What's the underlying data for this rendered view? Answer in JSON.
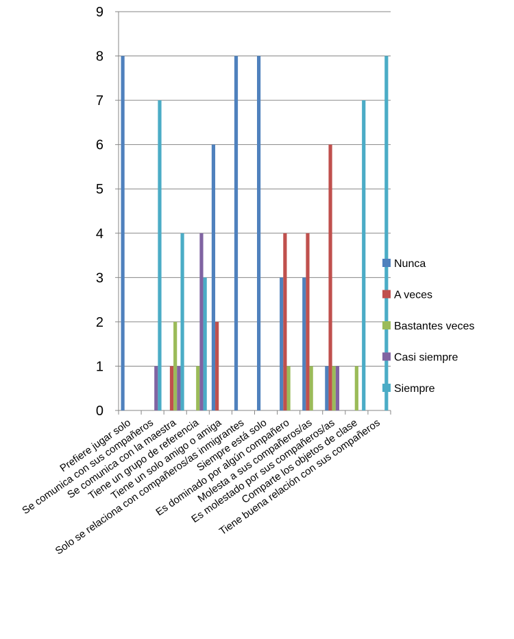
{
  "chart_data": {
    "type": "bar",
    "title": "",
    "xlabel": "",
    "ylabel": "",
    "ylim": [
      0,
      9
    ],
    "yticks": [
      0,
      1,
      2,
      3,
      4,
      5,
      6,
      7,
      8,
      9
    ],
    "grid": "horizontal",
    "legend_position": "right",
    "categories": [
      "Prefiere jugar solo",
      "Se comunica con sus compañeros",
      "Se comunica con la maestra",
      "Tiene un grupo de referencia",
      "Tiene un solo amigo o amiga",
      "Solo se relaciona con compañeros/as inmigrantes",
      "Siempre está solo",
      "Es dominado por algún compañero",
      "Molesta a sus compañeros/as",
      "Es molestado por sus compañeros/as",
      "Comparte los objetos de clase",
      "Tiene buena relación con sus compañeros"
    ],
    "series": [
      {
        "name": "Nunca",
        "color": "#4F81BD",
        "values": [
          8,
          0,
          0,
          0,
          6,
          8,
          8,
          3,
          3,
          1,
          0,
          0
        ]
      },
      {
        "name": "A veces",
        "color": "#C0504D",
        "values": [
          0,
          0,
          1,
          0,
          2,
          0,
          0,
          4,
          4,
          6,
          0,
          0
        ]
      },
      {
        "name": "Bastantes veces",
        "color": "#9BBB59",
        "values": [
          0,
          0,
          2,
          1,
          0,
          0,
          0,
          1,
          1,
          1,
          1,
          0
        ]
      },
      {
        "name": "Casi siempre",
        "color": "#8064A2",
        "values": [
          0,
          1,
          1,
          4,
          0,
          0,
          0,
          0,
          0,
          1,
          0,
          0
        ]
      },
      {
        "name": "Siempre",
        "color": "#4BACC6",
        "values": [
          0,
          7,
          4,
          3,
          0,
          0,
          0,
          0,
          0,
          0,
          7,
          8
        ]
      }
    ]
  }
}
